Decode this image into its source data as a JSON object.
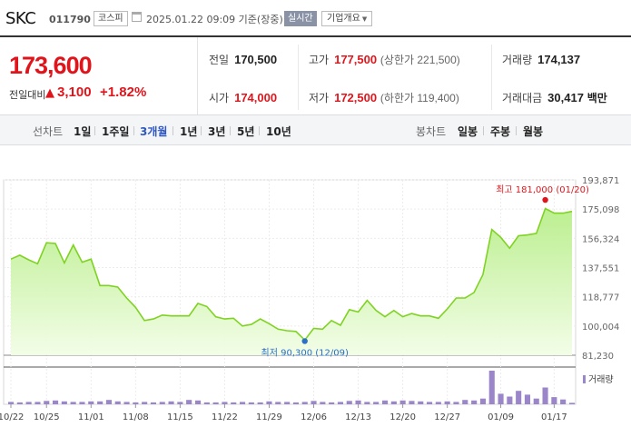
{
  "header": {
    "stock_name": "SKC",
    "stock_code": "011790",
    "market_badge": "코스피",
    "as_of": "2025.01.22 09:09  기준(장중)",
    "realtime_badge": "실시간",
    "company_button": "기업개요"
  },
  "summary": {
    "current_price": "173,600",
    "change_label": "전일대비",
    "change_arrow": "▲",
    "change_amount": "3,100",
    "change_rate": "+1.82%",
    "prev_close_label": "전일",
    "prev_close": "170,500",
    "high_label": "고가",
    "high": "177,500",
    "upper_limit": "(상한가 221,500)",
    "volume_label": "거래량",
    "volume": "174,137",
    "open_label": "시가",
    "open": "174,000",
    "low_label": "저가",
    "low": "172,500",
    "lower_limit": "(하한가 119,400)",
    "trade_value_label": "거래대금",
    "trade_value": "30,417",
    "trade_value_unit": "백만"
  },
  "tabs": {
    "line_title": "선차트",
    "line_periods": [
      "1일",
      "1주일",
      "3개월",
      "1년",
      "3년",
      "5년",
      "10년"
    ],
    "active_period": "3개월",
    "candle_title": "봉차트",
    "candle_periods": [
      "일봉",
      "주봉",
      "월봉"
    ]
  },
  "colors": {
    "up": "#e0151c",
    "active_tab": "#2e57c2",
    "line": "#7ed321",
    "volume_bar": "#9b86c9",
    "low_marker": "#2a6fc9",
    "high_marker": "#e0151c"
  },
  "chart_data": {
    "type": "area",
    "y_ticks": [
      "193,871",
      "175,098",
      "156,324",
      "137,551",
      "118,777",
      "100,004",
      "81,230"
    ],
    "ylim": [
      81230,
      193871
    ],
    "x_ticks": [
      "10/22",
      "10/25",
      "11/01",
      "11/08",
      "11/15",
      "11/22",
      "11/29",
      "12/06",
      "12/13",
      "12/20",
      "12/27",
      "01/09",
      "01/17"
    ],
    "x_tick_index": [
      0,
      4,
      9,
      14,
      19,
      24,
      29,
      34,
      39,
      44,
      49,
      55,
      61
    ],
    "prices": [
      143000,
      145500,
      142500,
      140000,
      153500,
      153000,
      140500,
      152000,
      141000,
      143000,
      126000,
      126000,
      125000,
      118000,
      112000,
      103500,
      104500,
      107000,
      106500,
      106500,
      106500,
      114500,
      112500,
      106000,
      104500,
      105000,
      100000,
      101000,
      104500,
      101500,
      98000,
      97000,
      96500,
      91000,
      98500,
      98000,
      103500,
      100500,
      110500,
      109000,
      116500,
      110000,
      106000,
      110000,
      106000,
      108000,
      106500,
      106500,
      105000,
      111000,
      118000,
      118000,
      121500,
      133000,
      162000,
      157000,
      150000,
      158000,
      158500,
      159500,
      175500,
      172500,
      172500,
      173600
    ],
    "volume_label": "거래량",
    "volumes": [
      5,
      4,
      5,
      5,
      7,
      8,
      6,
      5,
      5,
      6,
      6,
      9,
      6,
      5,
      4,
      5,
      4,
      5,
      6,
      5,
      9,
      8,
      4,
      4,
      5,
      4,
      5,
      4,
      4,
      6,
      5,
      5,
      4,
      5,
      7,
      5,
      4,
      5,
      7,
      8,
      5,
      5,
      8,
      6,
      8,
      7,
      6,
      5,
      5,
      6,
      5,
      9,
      8,
      12,
      70,
      22,
      16,
      28,
      20,
      12,
      35,
      15,
      10,
      3
    ],
    "high": {
      "label": "최고 181,000 (01/20)",
      "value": 181000,
      "index": 60
    },
    "low": {
      "label": "최저 90,300 (12/09)",
      "value": 90300,
      "index": 33
    }
  }
}
